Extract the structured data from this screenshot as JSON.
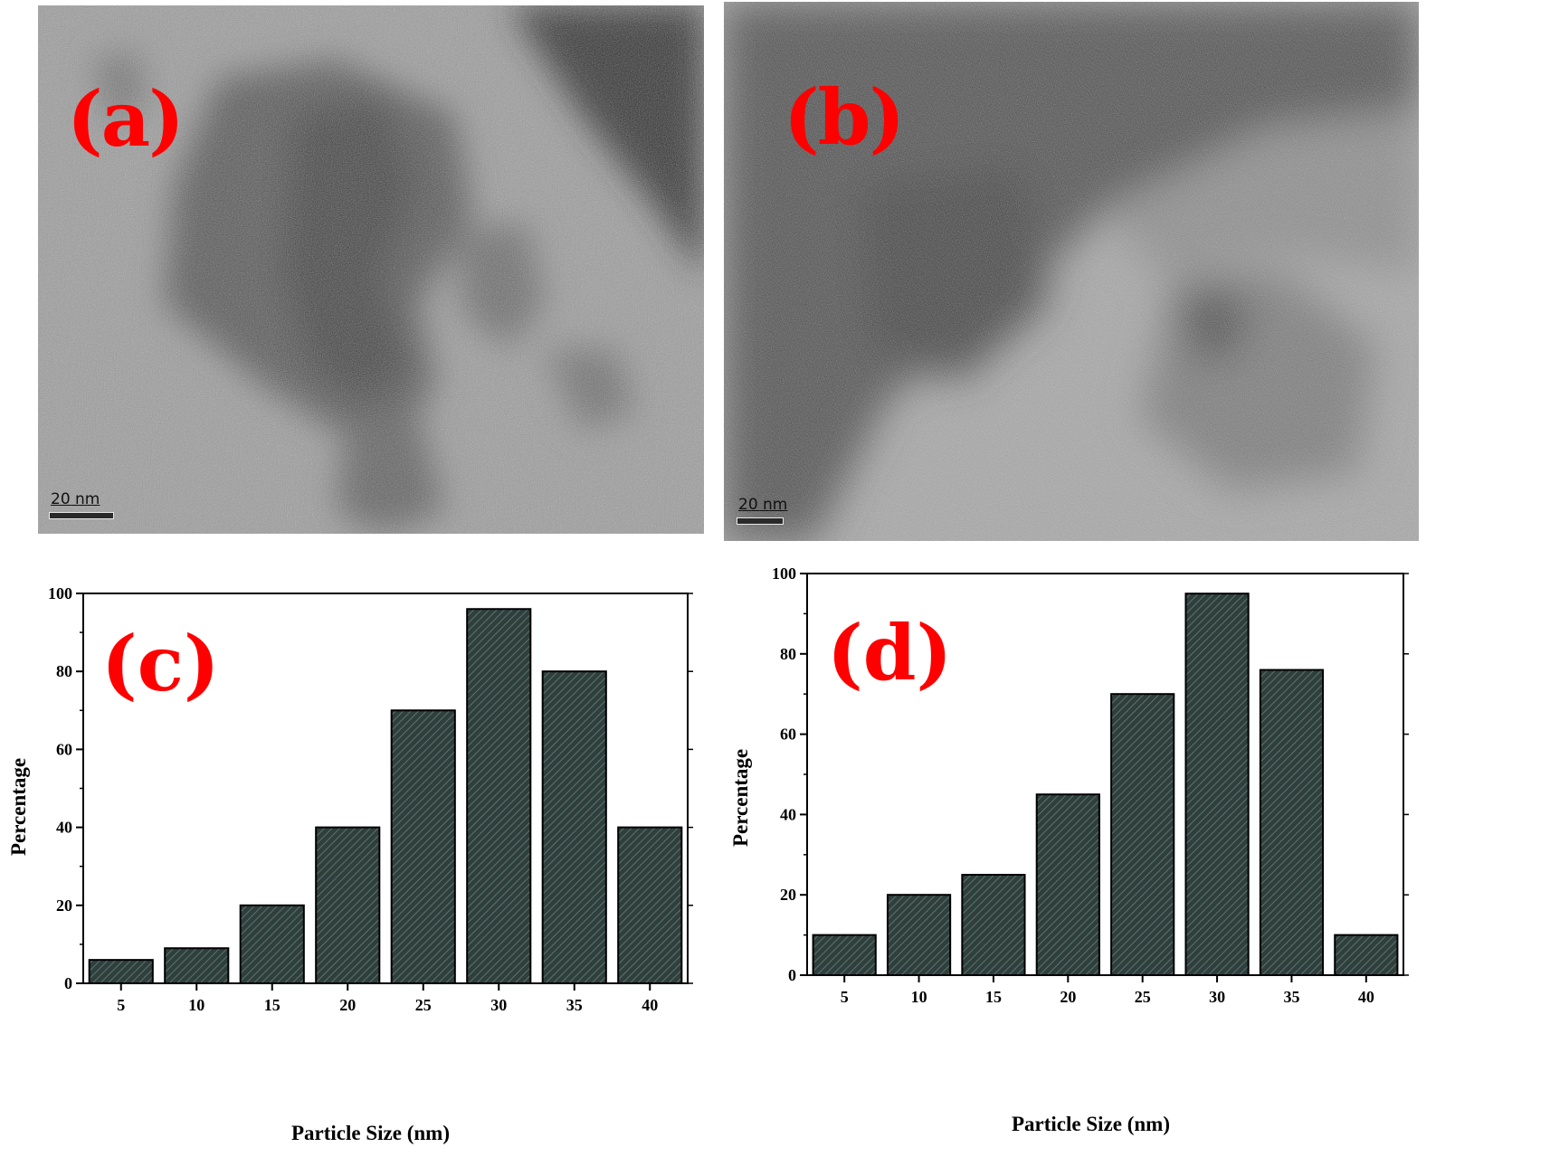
{
  "panels": {
    "a": {
      "label": "(a)",
      "scale_bar": "20 nm"
    },
    "b": {
      "label": "(b)",
      "scale_bar": "20 nm"
    },
    "c": {
      "label": "(c)"
    },
    "d": {
      "label": "(d)"
    }
  },
  "colors": {
    "bar_fill": "#2f3f3c",
    "bar_hatch": "#5d7370",
    "label_red": "#ff0000"
  },
  "chart_data": [
    {
      "id": "c",
      "type": "bar",
      "categories": [
        "5",
        "10",
        "15",
        "20",
        "25",
        "30",
        "35",
        "40"
      ],
      "values": [
        6,
        9,
        20,
        40,
        70,
        96,
        80,
        40
      ],
      "yticks": [
        "0",
        "20",
        "40",
        "60",
        "80",
        "100"
      ],
      "xlabel": "Particle Size (nm)",
      "ylabel": "Percentage",
      "ylim": [
        0,
        100
      ],
      "grid": false,
      "legend": "none"
    },
    {
      "id": "d",
      "type": "bar",
      "categories": [
        "5",
        "10",
        "15",
        "20",
        "25",
        "30",
        "35",
        "40"
      ],
      "values": [
        10,
        20,
        25,
        45,
        70,
        95,
        76,
        10
      ],
      "yticks": [
        "0",
        "20",
        "40",
        "60",
        "80",
        "100"
      ],
      "xlabel": "Particle Size (nm)",
      "ylabel": "Percentage",
      "ylim": [
        0,
        100
      ],
      "grid": false,
      "legend": "none"
    }
  ]
}
